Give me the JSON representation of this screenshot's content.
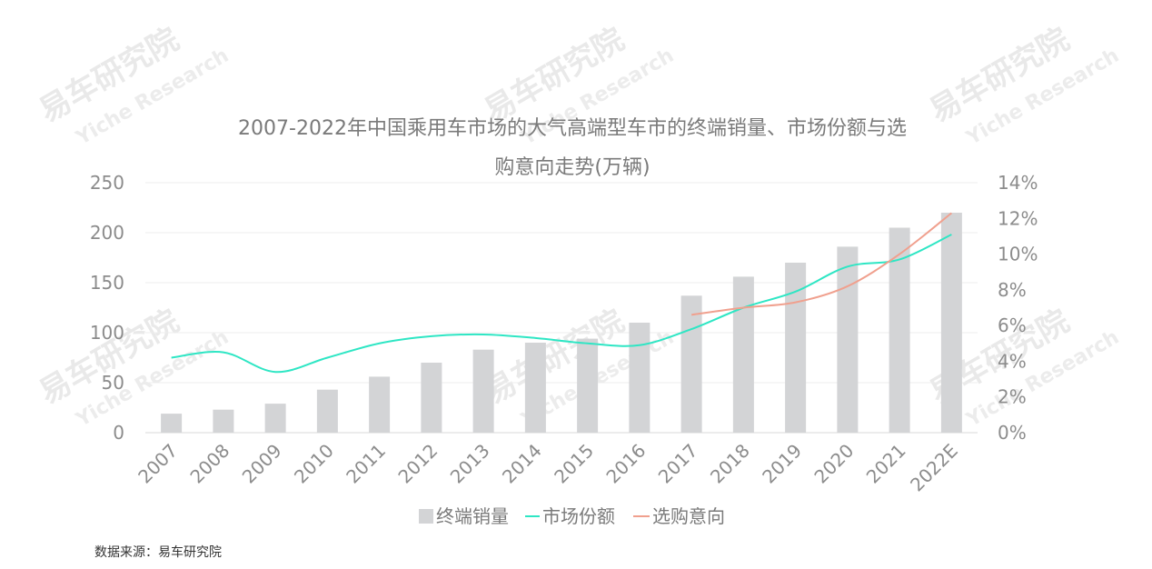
{
  "chart_data": {
    "type": "bar",
    "title_line1": "2007-2022年中国乘用车市场的大气高端型车市的终端销量、市场份额与选",
    "title_line2": "购意向走势(万辆)",
    "categories": [
      "2007",
      "2008",
      "2009",
      "2010",
      "2011",
      "2012",
      "2013",
      "2014",
      "2015",
      "2016",
      "2017",
      "2018",
      "2019",
      "2020",
      "2021",
      "2022E"
    ],
    "series": [
      {
        "name": "终端销量",
        "type": "bar",
        "axis": "left",
        "color": "#d3d4d6",
        "values": [
          19,
          23,
          29,
          43,
          56,
          70,
          83,
          90,
          94,
          110,
          137,
          156,
          170,
          186,
          205,
          220
        ]
      },
      {
        "name": "市场份额",
        "type": "line",
        "axis": "right",
        "color": "#2ee6c4",
        "values": [
          4.2,
          4.5,
          3.4,
          4.2,
          5.0,
          5.4,
          5.5,
          5.3,
          5.0,
          4.9,
          5.8,
          7.0,
          7.9,
          9.3,
          9.7,
          11.1
        ]
      },
      {
        "name": "选购意向",
        "type": "line",
        "axis": "right",
        "color": "#f0a08e",
        "values": [
          null,
          null,
          null,
          null,
          null,
          null,
          null,
          null,
          null,
          null,
          6.6,
          7.0,
          7.3,
          8.2,
          10.0,
          12.3
        ]
      }
    ],
    "yleft": {
      "min": 0,
      "max": 250,
      "ticks": [
        "0",
        "50",
        "100",
        "150",
        "200",
        "250"
      ]
    },
    "yright": {
      "min": 0,
      "max": 14,
      "ticks": [
        "0%",
        "2%",
        "4%",
        "6%",
        "8%",
        "10%",
        "12%",
        "14%"
      ]
    },
    "grid": true,
    "legend_position": "bottom"
  },
  "watermark": {
    "cn": "易车研究院",
    "en": "Yiche Research"
  },
  "source": "数据来源：易车研究院"
}
